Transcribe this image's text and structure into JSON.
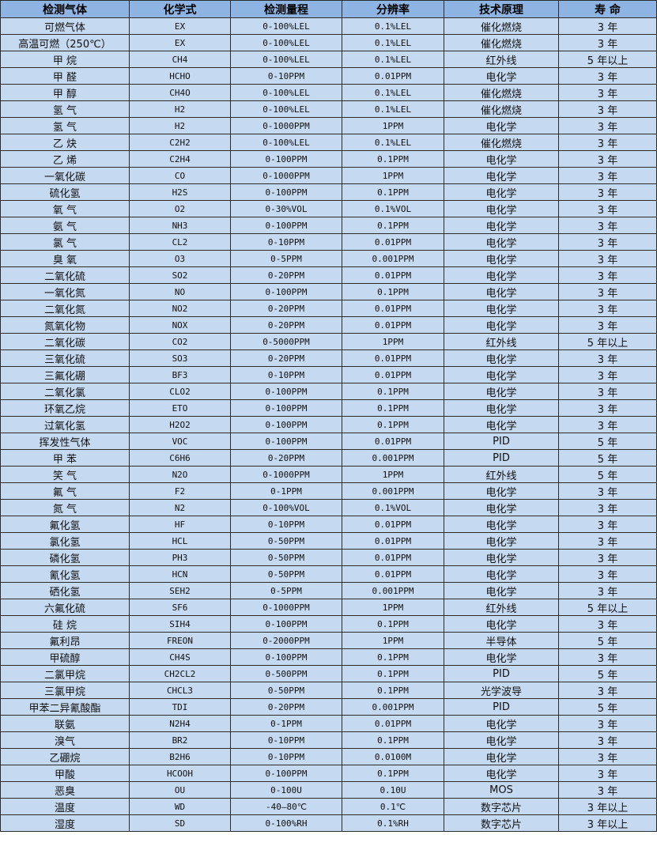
{
  "headers": [
    "检测气体",
    "化学式",
    "检测量程",
    "分辨率",
    "技术原理",
    "寿 命"
  ],
  "rows": [
    [
      "可燃气体",
      "EX",
      "0-100%LEL",
      "0.1%LEL",
      "催化燃烧",
      "3 年"
    ],
    [
      "高温可燃（250℃）",
      "EX",
      "0-100%LEL",
      "0.1%LEL",
      "催化燃烧",
      "3 年"
    ],
    [
      "甲 烷",
      "CH4",
      "0-100%LEL",
      "0.1%LEL",
      "红外线",
      "5 年以上"
    ],
    [
      "甲 醛",
      "HCHO",
      "0-10PPM",
      "0.01PPM",
      "电化学",
      "3 年"
    ],
    [
      "甲 醇",
      "CH4O",
      "0-100%LEL",
      "0.1%LEL",
      "催化燃烧",
      "3 年"
    ],
    [
      "氢 气",
      "H2",
      "0-100%LEL",
      "0.1%LEL",
      "催化燃烧",
      "3 年"
    ],
    [
      "氢 气",
      "H2",
      "0-1000PPM",
      "1PPM",
      "电化学",
      "3 年"
    ],
    [
      "乙 炔",
      "C2H2",
      "0-100%LEL",
      "0.1%LEL",
      "催化燃烧",
      "3 年"
    ],
    [
      "乙 烯",
      "C2H4",
      "0-100PPM",
      "0.1PPM",
      "电化学",
      "3 年"
    ],
    [
      "一氧化碳",
      "CO",
      "0-1000PPM",
      "1PPM",
      "电化学",
      "3 年"
    ],
    [
      "硫化氢",
      "H2S",
      "0-100PPM",
      "0.1PPM",
      "电化学",
      "3 年"
    ],
    [
      "氧 气",
      "O2",
      "0-30%VOL",
      "0.1%VOL",
      "电化学",
      "3 年"
    ],
    [
      "氨 气",
      "NH3",
      "0-100PPM",
      "0.1PPM",
      "电化学",
      "3 年"
    ],
    [
      "氯 气",
      "CL2",
      "0-10PPM",
      "0.01PPM",
      "电化学",
      "3 年"
    ],
    [
      "臭 氧",
      "O3",
      "0-5PPM",
      "0.001PPM",
      "电化学",
      "3 年"
    ],
    [
      "二氧化硫",
      "SO2",
      "0-20PPM",
      "0.01PPM",
      "电化学",
      "3 年"
    ],
    [
      "一氧化氮",
      "NO",
      "0-100PPM",
      "0.1PPM",
      "电化学",
      "3 年"
    ],
    [
      "二氧化氮",
      "NO2",
      "0-20PPM",
      "0.01PPM",
      "电化学",
      "3 年"
    ],
    [
      "氮氧化物",
      "NOX",
      "0-20PPM",
      "0.01PPM",
      "电化学",
      "3 年"
    ],
    [
      "二氧化碳",
      "CO2",
      "0-5000PPM",
      "1PPM",
      "红外线",
      "5 年以上"
    ],
    [
      "三氧化硫",
      "SO3",
      "0-20PPM",
      "0.01PPM",
      "电化学",
      "3 年"
    ],
    [
      "三氟化硼",
      "BF3",
      "0-10PPM",
      "0.01PPM",
      "电化学",
      "3 年"
    ],
    [
      "二氧化氯",
      "CLO2",
      "0-100PPM",
      "0.1PPM",
      "电化学",
      "3 年"
    ],
    [
      "环氧乙烷",
      "ETO",
      "0-100PPM",
      "0.1PPM",
      "电化学",
      "3 年"
    ],
    [
      "过氧化氢",
      "H2O2",
      "0-100PPM",
      "0.1PPM",
      "电化学",
      "3 年"
    ],
    [
      "挥发性气体",
      "VOC",
      "0-100PPM",
      "0.01PPM",
      "PID",
      "5 年"
    ],
    [
      "甲 苯",
      "C6H6",
      "0-20PPM",
      "0.001PPM",
      "PID",
      "5 年"
    ],
    [
      "笑 气",
      "N2O",
      "0-1000PPM",
      "1PPM",
      "红外线",
      "5 年"
    ],
    [
      "氟 气",
      "F2",
      "0-1PPM",
      "0.001PPM",
      "电化学",
      "3 年"
    ],
    [
      "氮 气",
      "N2",
      "0-100%VOL",
      "0.1%VOL",
      "电化学",
      "3 年"
    ],
    [
      "氟化氢",
      "HF",
      "0-10PPM",
      "0.01PPM",
      "电化学",
      "3 年"
    ],
    [
      "氯化氢",
      "HCL",
      "0-50PPM",
      "0.01PPM",
      "电化学",
      "3 年"
    ],
    [
      "磷化氢",
      "PH3",
      "0-50PPM",
      "0.01PPM",
      "电化学",
      "3 年"
    ],
    [
      "氰化氢",
      "HCN",
      "0-50PPM",
      "0.01PPM",
      "电化学",
      "3 年"
    ],
    [
      "硒化氢",
      "SEH2",
      "0-5PPM",
      "0.001PPM",
      "电化学",
      "3 年"
    ],
    [
      "六氟化硫",
      "SF6",
      "0-1000PPM",
      "1PPM",
      "红外线",
      "5 年以上"
    ],
    [
      "硅 烷",
      "SIH4",
      "0-100PPM",
      "0.1PPM",
      "电化学",
      "3 年"
    ],
    [
      "氟利昂",
      "FREON",
      "0-2000PPM",
      "1PPM",
      "半导体",
      "5 年"
    ],
    [
      "甲硫醇",
      "CH4S",
      "0-100PPM",
      "0.1PPM",
      "电化学",
      "3 年"
    ],
    [
      "二氯甲烷",
      "CH2CL2",
      "0-500PPM",
      "0.1PPM",
      "PID",
      "5 年"
    ],
    [
      "三氯甲烷",
      "CHCL3",
      "0-50PPM",
      "0.1PPM",
      "光学波导",
      "3 年"
    ],
    [
      "甲苯二异氰酸酯",
      "TDI",
      "0-20PPM",
      "0.001PPM",
      "PID",
      "5 年"
    ],
    [
      "联氨",
      "N2H4",
      "0-1PPM",
      "0.01PPM",
      "电化学",
      "3 年"
    ],
    [
      "溴气",
      "BR2",
      "0-10PPM",
      "0.1PPM",
      "电化学",
      "3 年"
    ],
    [
      "乙硼烷",
      "B2H6",
      "0-10PPM",
      "0.0100M",
      "电化学",
      "3 年"
    ],
    [
      "甲酸",
      "HCOOH",
      "0-100PPM",
      "0.1PPM",
      "电化学",
      "3 年"
    ],
    [
      "恶臭",
      "OU",
      "0-100U",
      "0.10U",
      "MOS",
      "3 年"
    ],
    [
      "温度",
      "WD",
      "-40—80℃",
      "0.1℃",
      "数字芯片",
      "3 年以上"
    ],
    [
      "湿度",
      "SD",
      "0-100%RH",
      "0.1%RH",
      "数字芯片",
      "3 年以上"
    ]
  ],
  "colors": {
    "header_bg": "#8db4e2",
    "row_bg": "#c5d9f1",
    "border": "#2b2b2b"
  }
}
